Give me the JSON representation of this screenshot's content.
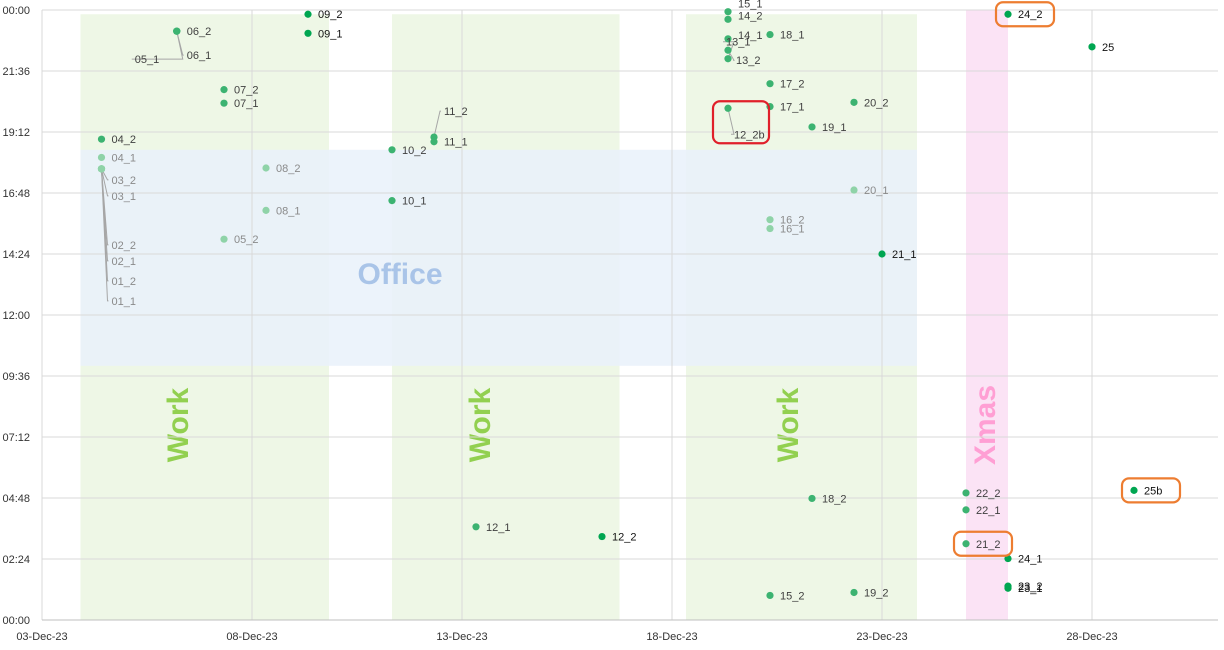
{
  "chart_data": {
    "type": "scatter",
    "title": "",
    "xlabel": "",
    "ylabel": "",
    "grid": true,
    "legend": "none",
    "xlim": [
      "2023-12-03",
      "2023-12-31"
    ],
    "ylim": [
      "00:00",
      "24:00"
    ],
    "x_ticks": [
      "03-Dec-23",
      "08-Dec-23",
      "13-Dec-23",
      "18-Dec-23",
      "23-Dec-23",
      "28-Dec-23"
    ],
    "y_ticks": [
      "00:00",
      "02:24",
      "04:48",
      "07:12",
      "09:36",
      "12:00",
      "14:24",
      "16:48",
      "19:12",
      "21:36",
      "00:00"
    ],
    "colors": {
      "point_dark": "#00a651",
      "point_mid": "#3cb371",
      "point_light": "#8fd3a8",
      "work_band": "#eef7e6",
      "office_band": "#e9f1fa",
      "office_text": "#a9c4e8",
      "xmas_band": "#fbe3f5",
      "xmas_text": "#ff9fd4",
      "work_text": "#92d050",
      "highlight_red": "#e0202a",
      "highlight_orange": "#ed7d31"
    },
    "bands": [
      {
        "label": "Work",
        "kind": "work",
        "x_start": "2023-12-03 22:00",
        "x_end": "2023-12-09 20:00",
        "y_from": "00:00",
        "y_to": "23:50"
      },
      {
        "label": "Work",
        "kind": "work",
        "x_start": "2023-12-11 08:00",
        "x_end": "2023-12-16 18:00",
        "y_from": "00:00",
        "y_to": "23:50"
      },
      {
        "label": "Work",
        "kind": "work",
        "x_start": "2023-12-18 08:00",
        "x_end": "2023-12-23 20:00",
        "y_from": "00:00",
        "y_to": "23:50"
      },
      {
        "label": "Office",
        "kind": "office",
        "x_start": "2023-12-03 22:00",
        "x_end": "2023-12-23 20:00",
        "y_from": "10:00",
        "y_to": "18:30"
      },
      {
        "label": "Xmas",
        "kind": "xmas",
        "x_start": "2023-12-25 00:00",
        "x_end": "2023-12-26 00:00",
        "y_from": "00:00",
        "y_to": "24:00"
      }
    ],
    "points": [
      {
        "label": "01_1",
        "x": "2023-12-04 10:00",
        "y": "17:45",
        "tone": "light",
        "label_pos": "17:00",
        "label_dx": 14,
        "label_dy": 0,
        "leader": true
      },
      {
        "label": "01_2",
        "x": "2023-12-04 10:00",
        "y": "17:45",
        "tone": "light",
        "label_pos": "17:00",
        "label_dx": 14,
        "label_dy": 0,
        "leader": true
      },
      {
        "label": "02_1",
        "x": "2023-12-04 10:00",
        "y": "17:45",
        "tone": "light",
        "label_pos": "17:00",
        "label_dx": 14,
        "label_dy": 0,
        "leader": true
      },
      {
        "label": "02_2",
        "x": "2023-12-04 10:00",
        "y": "17:45",
        "tone": "light",
        "label_pos": "17:00",
        "label_dx": 14,
        "label_dy": 0,
        "leader": true
      },
      {
        "label": "03_1",
        "x": "2023-12-04 10:00",
        "y": "17:45",
        "tone": "light",
        "label_pos": "17:00",
        "label_dx": 14,
        "label_dy": 0,
        "leader": true
      },
      {
        "label": "03_2",
        "x": "2023-12-04 10:00",
        "y": "17:45",
        "tone": "light",
        "label_pos": "17:00",
        "label_dx": 14,
        "label_dy": 0,
        "leader": true
      },
      {
        "label": "04_1",
        "x": "2023-12-04 10:00",
        "y": "18:12",
        "tone": "light"
      },
      {
        "label": "04_2",
        "x": "2023-12-04 10:00",
        "y": "18:55",
        "tone": "mid"
      },
      {
        "label": "05_1",
        "x": "2023-12-06 05:00",
        "y": "23:10",
        "tone": "mid",
        "label_left": true
      },
      {
        "label": "05_2",
        "x": "2023-12-07 08:00",
        "y": "14:59",
        "tone": "light"
      },
      {
        "label": "06_1",
        "x": "2023-12-06 05:00",
        "y": "23:10",
        "tone": "mid"
      },
      {
        "label": "06_2",
        "x": "2023-12-06 05:00",
        "y": "23:10",
        "tone": "mid"
      },
      {
        "label": "07_1",
        "x": "2023-12-07 08:00",
        "y": "20:20",
        "tone": "mid"
      },
      {
        "label": "07_2",
        "x": "2023-12-07 08:00",
        "y": "20:52",
        "tone": "mid"
      },
      {
        "label": "08_1",
        "x": "2023-12-08 08:00",
        "y": "16:07",
        "tone": "light"
      },
      {
        "label": "08_2",
        "x": "2023-12-08 08:00",
        "y": "17:47",
        "tone": "light"
      },
      {
        "label": "09_1",
        "x": "2023-12-09 08:00",
        "y": "23:05",
        "tone": "dark"
      },
      {
        "label": "09_2",
        "x": "2023-12-09 08:00",
        "y": "23:50",
        "tone": "dark"
      },
      {
        "label": "10_1",
        "x": "2023-12-11 08:00",
        "y": "16:30",
        "tone": "mid"
      },
      {
        "label": "10_2",
        "x": "2023-12-11 08:00",
        "y": "18:30",
        "tone": "mid"
      },
      {
        "label": "11_1",
        "x": "2023-12-12 08:00",
        "y": "18:49",
        "tone": "mid"
      },
      {
        "label": "11_2",
        "x": "2023-12-12 08:00",
        "y": "19:00",
        "tone": "mid"
      },
      {
        "label": "12_1",
        "x": "2023-12-13 08:00",
        "y": "03:40",
        "tone": "mid"
      },
      {
        "label": "12_2",
        "x": "2023-12-16 08:00",
        "y": "03:17",
        "tone": "dark"
      },
      {
        "label": "12_2b",
        "x": "2023-12-19 08:00",
        "y": "20:08",
        "tone": "mid"
      },
      {
        "label": "13_1",
        "x": "2023-12-19 08:00",
        "y": "22:05",
        "tone": "mid"
      },
      {
        "label": "13_2",
        "x": "2023-12-19 08:00",
        "y": "22:25",
        "tone": "mid"
      },
      {
        "label": "14_1",
        "x": "2023-12-19 08:00",
        "y": "22:52",
        "tone": "mid"
      },
      {
        "label": "14_2",
        "x": "2023-12-19 08:00",
        "y": "23:38",
        "tone": "mid"
      },
      {
        "label": "15_1",
        "x": "2023-12-19 08:00",
        "y": "23:56",
        "tone": "mid"
      },
      {
        "label": "15_2",
        "x": "2023-12-20 08:00",
        "y": "00:58",
        "tone": "mid"
      },
      {
        "label": "16_1",
        "x": "2023-12-20 08:00",
        "y": "15:24",
        "tone": "light"
      },
      {
        "label": "16_2",
        "x": "2023-12-20 08:00",
        "y": "15:45",
        "tone": "light"
      },
      {
        "label": "17_1",
        "x": "2023-12-20 08:00",
        "y": "20:12",
        "tone": "mid"
      },
      {
        "label": "17_2",
        "x": "2023-12-20 08:00",
        "y": "21:06",
        "tone": "mid"
      },
      {
        "label": "18_1",
        "x": "2023-12-20 08:00",
        "y": "23:02",
        "tone": "mid"
      },
      {
        "label": "18_2",
        "x": "2023-12-21 08:00",
        "y": "04:47",
        "tone": "mid"
      },
      {
        "label": "19_1",
        "x": "2023-12-21 08:00",
        "y": "19:24",
        "tone": "mid"
      },
      {
        "label": "19_2",
        "x": "2023-12-22 08:00",
        "y": "01:05",
        "tone": "mid"
      },
      {
        "label": "20_1",
        "x": "2023-12-22 08:00",
        "y": "16:55",
        "tone": "light"
      },
      {
        "label": "20_2",
        "x": "2023-12-22 08:00",
        "y": "20:22",
        "tone": "mid"
      },
      {
        "label": "21_1",
        "x": "2023-12-23 00:00",
        "y": "14:24",
        "tone": "dark"
      },
      {
        "label": "21_2",
        "x": "2023-12-25 00:00",
        "y": "03:00",
        "tone": "mid"
      },
      {
        "label": "22_1",
        "x": "2023-12-25 00:00",
        "y": "04:20",
        "tone": "mid"
      },
      {
        "label": "22_2",
        "x": "2023-12-25 00:00",
        "y": "05:00",
        "tone": "mid"
      },
      {
        "label": "23_1",
        "x": "2023-12-26 00:00",
        "y": "01:15",
        "tone": "dark"
      },
      {
        "label": "23_2",
        "x": "2023-12-26 00:00",
        "y": "01:20",
        "tone": "dark"
      },
      {
        "label": "24_1",
        "x": "2023-12-26 00:00",
        "y": "02:25",
        "tone": "dark"
      },
      {
        "label": "24_2",
        "x": "2023-12-26 00:00",
        "y": "23:50",
        "tone": "dark"
      },
      {
        "label": "25",
        "x": "2023-12-28 00:00",
        "y": "22:33",
        "tone": "dark"
      },
      {
        "label": "25b",
        "x": "2023-12-29 00:00",
        "y": "05:06",
        "tone": "dark"
      }
    ],
    "highlights": [
      {
        "label": "12_2b",
        "color": "red"
      },
      {
        "label": "21_2",
        "color": "orange"
      },
      {
        "label": "24_2",
        "color": "orange"
      },
      {
        "label": "25b",
        "color": "orange"
      }
    ]
  }
}
